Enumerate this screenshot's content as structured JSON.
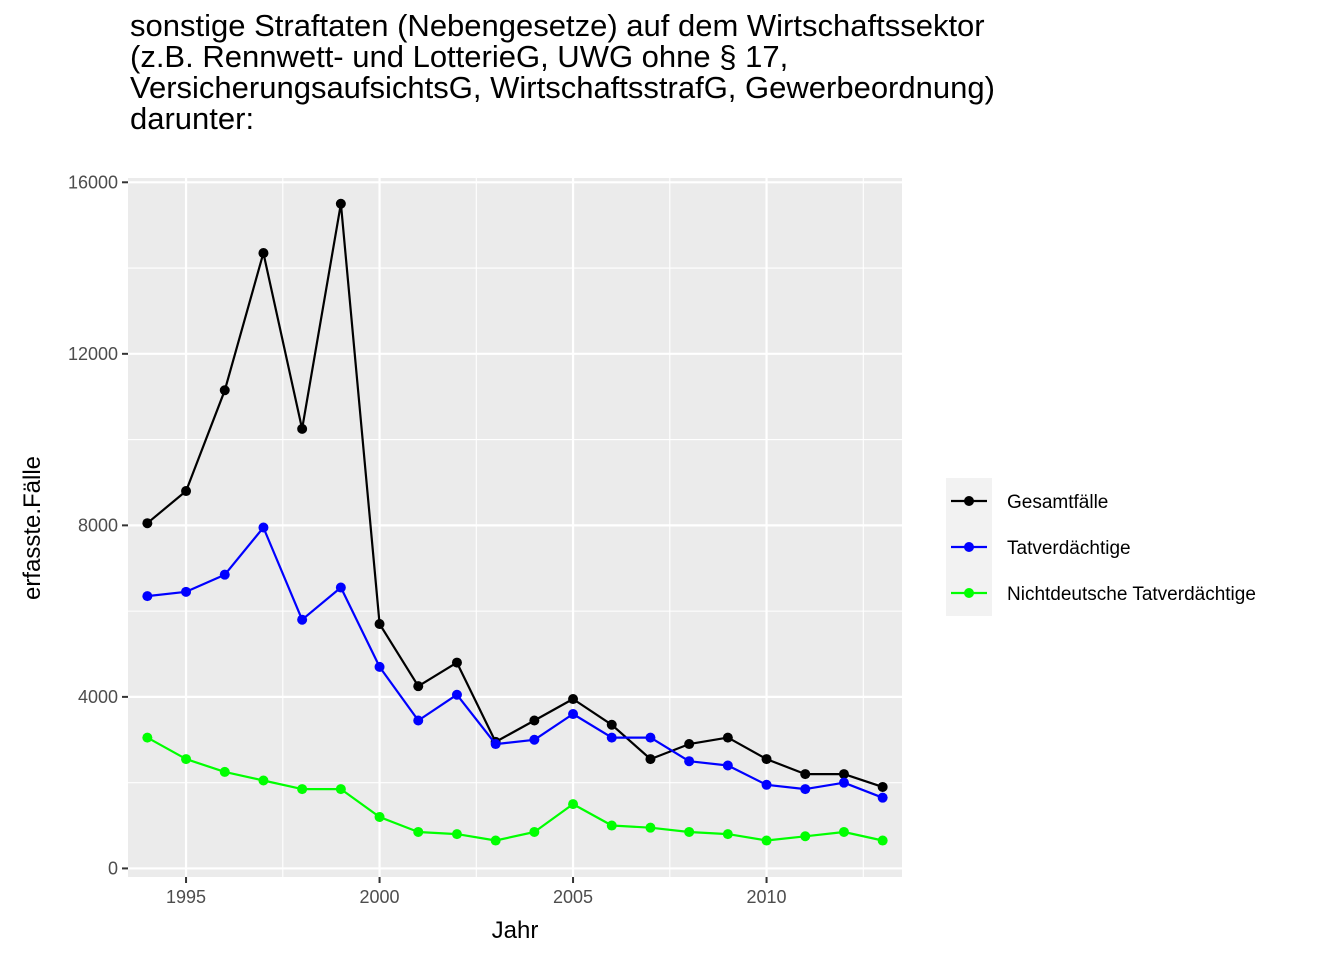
{
  "chart_data": {
    "type": "line",
    "title_lines": [
      "sonstige Straftaten (Nebengesetze) auf dem Wirtschaftssektor",
      "(z.B. Rennwett- und LotterieG, UWG ohne § 17,",
      "VersicherungsaufsichtsG, WirtschaftsstrafG, Gewerbeordnung)",
      "darunter:"
    ],
    "xlabel": "Jahr",
    "ylabel": "erfasste.Fälle",
    "x": [
      1994,
      1995,
      1996,
      1997,
      1998,
      1999,
      2000,
      2001,
      2002,
      2003,
      2004,
      2005,
      2006,
      2007,
      2008,
      2009,
      2010,
      2011,
      2012,
      2013
    ],
    "xlim": [
      1993.5,
      2013.5
    ],
    "ylim": [
      -200,
      16100
    ],
    "xticks": [
      1995,
      2000,
      2005,
      2010
    ],
    "yticks": [
      0,
      4000,
      8000,
      12000,
      16000
    ],
    "xtick_labels": [
      "1995",
      "2000",
      "2005",
      "2010"
    ],
    "ytick_labels": [
      "0",
      "4000",
      "8000",
      "12000",
      "16000"
    ],
    "grid": true,
    "legend_position": "right",
    "series": [
      {
        "name": "Gesamtfälle",
        "color": "#000000",
        "values": [
          8050,
          8800,
          11150,
          14350,
          10250,
          15500,
          5700,
          4250,
          4800,
          2950,
          3450,
          3950,
          3350,
          2550,
          2900,
          3050,
          2550,
          2200,
          2200,
          1900
        ]
      },
      {
        "name": "Tatverdächtige",
        "color": "#0000ff",
        "values": [
          6350,
          6450,
          6850,
          7950,
          5800,
          6550,
          4700,
          3450,
          4050,
          2900,
          3000,
          3600,
          3050,
          3050,
          2500,
          2400,
          1950,
          1850,
          2000,
          1650
        ]
      },
      {
        "name": "Nichtdeutsche Tatverdächtige",
        "color": "#00ff00",
        "values": [
          3050,
          2550,
          2250,
          2050,
          1850,
          1850,
          1200,
          850,
          800,
          650,
          850,
          1500,
          1000,
          950,
          850,
          800,
          650,
          750,
          850,
          650
        ]
      }
    ]
  }
}
